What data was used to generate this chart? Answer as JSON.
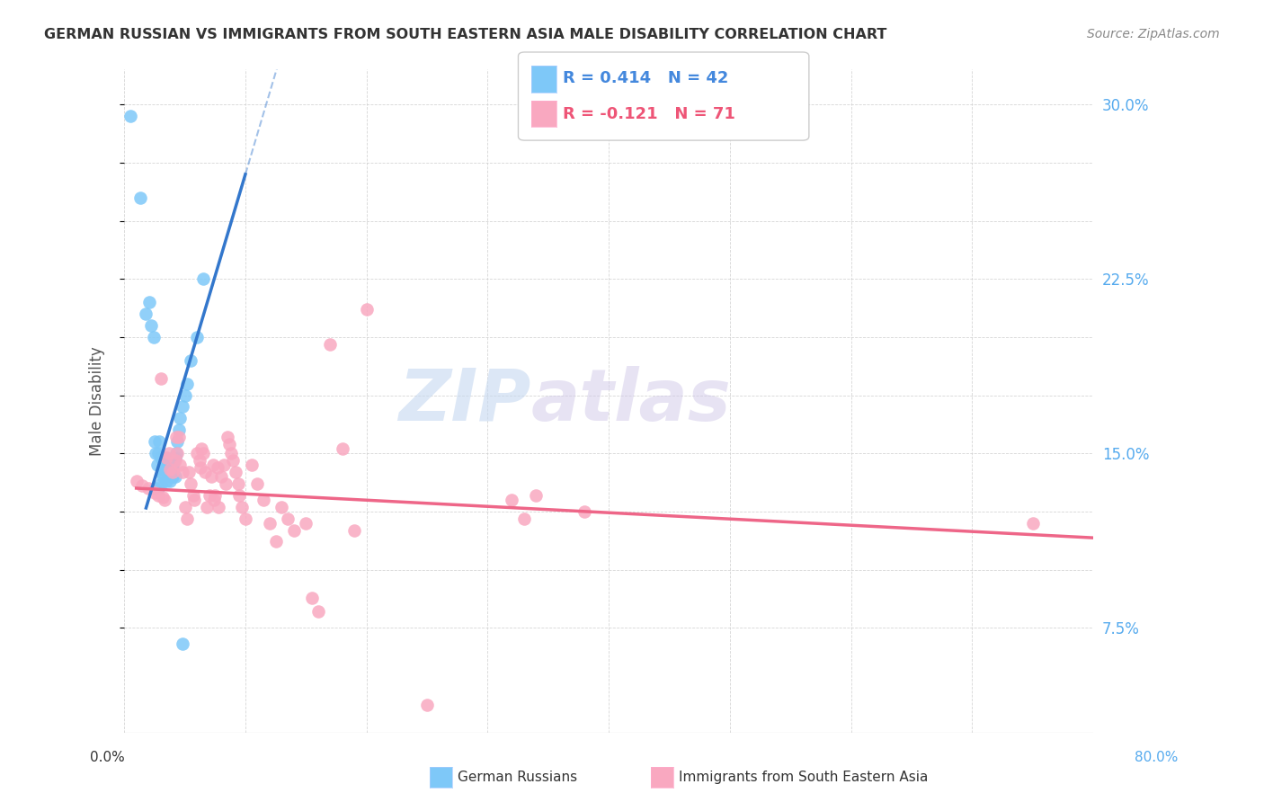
{
  "title": "GERMAN RUSSIAN VS IMMIGRANTS FROM SOUTH EASTERN ASIA MALE DISABILITY CORRELATION CHART",
  "source": "Source: ZipAtlas.com",
  "ylabel": "Male Disability",
  "yticks": [
    0.075,
    0.1,
    0.125,
    0.15,
    0.175,
    0.2,
    0.225,
    0.25,
    0.275,
    0.3
  ],
  "ytick_labels": [
    "7.5%",
    "",
    "",
    "15.0%",
    "",
    "",
    "22.5%",
    "",
    "",
    "30.0%"
  ],
  "xlim": [
    0.0,
    0.8
  ],
  "ylim": [
    0.03,
    0.315
  ],
  "xticks": [
    0.0,
    0.1,
    0.2,
    0.3,
    0.4,
    0.5,
    0.6,
    0.7,
    0.8
  ],
  "legend_r1": "R = 0.414",
  "legend_n1": "N = 42",
  "legend_r2": "R = -0.121",
  "legend_n2": "N = 71",
  "legend_label1": "German Russians",
  "legend_label2": "Immigrants from South Eastern Asia",
  "color_blue": "#7EC8F8",
  "color_pink": "#F9A8C0",
  "color_blue_line": "#3377CC",
  "color_pink_line": "#EE6688",
  "watermark_zip": "ZIP",
  "watermark_atlas": "atlas",
  "blue_scatter_x": [
    0.005,
    0.013,
    0.018,
    0.021,
    0.022,
    0.024,
    0.025,
    0.026,
    0.027,
    0.028,
    0.029,
    0.03,
    0.031,
    0.032,
    0.033,
    0.034,
    0.035,
    0.036,
    0.037,
    0.038,
    0.039,
    0.04,
    0.041,
    0.042,
    0.043,
    0.044,
    0.045,
    0.046,
    0.048,
    0.05,
    0.052,
    0.055,
    0.06,
    0.065,
    0.038,
    0.042,
    0.025,
    0.03,
    0.035,
    0.04,
    0.028,
    0.048
  ],
  "blue_scatter_y": [
    0.295,
    0.26,
    0.21,
    0.215,
    0.205,
    0.2,
    0.155,
    0.15,
    0.145,
    0.15,
    0.155,
    0.148,
    0.142,
    0.14,
    0.143,
    0.145,
    0.148,
    0.142,
    0.145,
    0.143,
    0.14,
    0.143,
    0.146,
    0.148,
    0.15,
    0.155,
    0.16,
    0.165,
    0.17,
    0.175,
    0.18,
    0.19,
    0.2,
    0.225,
    0.138,
    0.14,
    0.135,
    0.137,
    0.138,
    0.14,
    0.135,
    0.068
  ],
  "pink_scatter_x": [
    0.01,
    0.015,
    0.02,
    0.025,
    0.028,
    0.03,
    0.032,
    0.033,
    0.035,
    0.037,
    0.038,
    0.04,
    0.042,
    0.043,
    0.044,
    0.045,
    0.046,
    0.048,
    0.05,
    0.052,
    0.053,
    0.055,
    0.057,
    0.058,
    0.06,
    0.062,
    0.063,
    0.064,
    0.065,
    0.067,
    0.068,
    0.07,
    0.072,
    0.073,
    0.074,
    0.075,
    0.077,
    0.078,
    0.08,
    0.082,
    0.084,
    0.085,
    0.087,
    0.088,
    0.09,
    0.092,
    0.094,
    0.095,
    0.097,
    0.1,
    0.105,
    0.11,
    0.115,
    0.12,
    0.125,
    0.13,
    0.135,
    0.14,
    0.15,
    0.155,
    0.16,
    0.17,
    0.18,
    0.19,
    0.25,
    0.32,
    0.33,
    0.34,
    0.38,
    0.75,
    0.2
  ],
  "pink_scatter_y": [
    0.138,
    0.136,
    0.135,
    0.133,
    0.132,
    0.182,
    0.131,
    0.13,
    0.148,
    0.15,
    0.143,
    0.142,
    0.147,
    0.157,
    0.15,
    0.157,
    0.145,
    0.142,
    0.127,
    0.122,
    0.142,
    0.137,
    0.132,
    0.13,
    0.15,
    0.147,
    0.144,
    0.152,
    0.15,
    0.142,
    0.127,
    0.132,
    0.14,
    0.145,
    0.13,
    0.132,
    0.144,
    0.127,
    0.14,
    0.145,
    0.137,
    0.157,
    0.154,
    0.15,
    0.147,
    0.142,
    0.137,
    0.132,
    0.127,
    0.122,
    0.145,
    0.137,
    0.13,
    0.12,
    0.112,
    0.127,
    0.122,
    0.117,
    0.12,
    0.088,
    0.082,
    0.197,
    0.152,
    0.117,
    0.042,
    0.13,
    0.122,
    0.132,
    0.125,
    0.12,
    0.212
  ]
}
